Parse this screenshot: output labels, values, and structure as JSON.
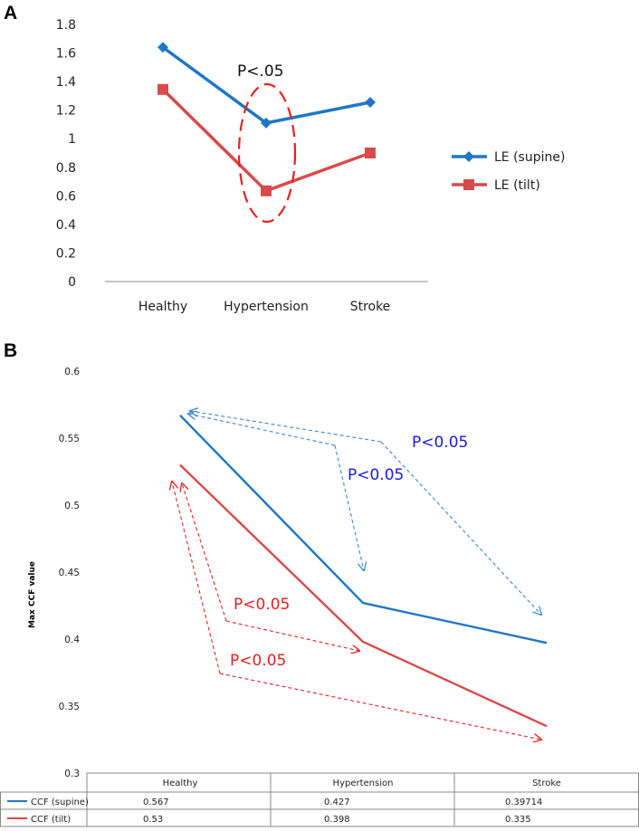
{
  "chart_data": [
    {
      "panel": "A",
      "type": "line",
      "categories": [
        "Healthy",
        "Hypertension",
        "Stroke"
      ],
      "series": [
        {
          "name": "LE (supine)",
          "values": [
            1.64,
            1.11,
            1.255
          ],
          "color": "#1f77c4",
          "marker": "diamond"
        },
        {
          "name": "LE (tilt)",
          "values": [
            1.345,
            0.635,
            0.9
          ],
          "color": "#d94a4a",
          "marker": "square"
        }
      ],
      "ylim": [
        0,
        1.8
      ],
      "yticks": [
        "0",
        "0.2",
        "0.4",
        "0.6",
        "0.8",
        "1",
        "1.2",
        "1.4",
        "1.6",
        "1.8"
      ],
      "annotation": "P<.05",
      "legend_position": "right"
    },
    {
      "panel": "B",
      "type": "line",
      "categories": [
        "Healthy",
        "Hypertension",
        "Stroke"
      ],
      "series": [
        {
          "name": "CCF (supine)",
          "values": [
            0.567,
            0.427,
            0.39714
          ],
          "display_values": [
            "0.567",
            "0.427",
            "0.39714"
          ],
          "color": "#1f77c4"
        },
        {
          "name": "CCF (tilt)",
          "values": [
            0.53,
            0.398,
            0.335
          ],
          "display_values": [
            "0.53",
            "0.398",
            "0.335"
          ],
          "color": "#d94a4a"
        }
      ],
      "ylim": [
        0.3,
        0.6
      ],
      "yticks": [
        "0.3",
        "0.35",
        "0.4",
        "0.45",
        "0.5",
        "0.55",
        "0.6"
      ],
      "ylabel": "Max CCF value",
      "annotations": [
        {
          "text": "P<0.05",
          "color": "#1a1adb"
        },
        {
          "text": "P<0.05",
          "color": "#1a1adb"
        },
        {
          "text": "P<0.05",
          "color": "#e8201e"
        },
        {
          "text": "P<0.05",
          "color": "#e8201e"
        }
      ],
      "legend_position": "data-table"
    }
  ]
}
